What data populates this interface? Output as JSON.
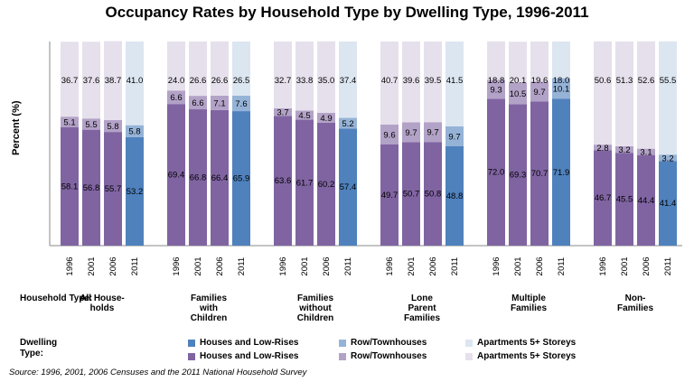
{
  "chart_data": {
    "type": "bar",
    "stacked": true,
    "title": "Occupancy Rates by Household Type by Dwelling Type, 1996-2011",
    "ylabel": "Percent (%)",
    "ylim": [
      0,
      100
    ],
    "grid": false,
    "years": [
      "1996",
      "2001",
      "2006",
      "2011"
    ],
    "row_labels": {
      "household": "Household Type:",
      "dwelling": "Dwelling Type:"
    },
    "groups": [
      {
        "name": "All House-holds",
        "display": [
          "All House-",
          "holds"
        ],
        "houses": [
          58.1,
          56.8,
          55.7,
          53.2
        ],
        "row": [
          5.1,
          5.5,
          5.8,
          5.8
        ],
        "apts": [
          36.7,
          37.6,
          38.7,
          41.0
        ]
      },
      {
        "name": "Families with Children",
        "display": [
          "Families",
          "with",
          "Children"
        ],
        "houses": [
          69.4,
          66.8,
          66.4,
          65.9
        ],
        "row": [
          6.6,
          6.6,
          7.1,
          7.6
        ],
        "apts": [
          24.0,
          26.6,
          26.6,
          26.5
        ]
      },
      {
        "name": "Families without Children",
        "display": [
          "Families",
          "without",
          "Children"
        ],
        "houses": [
          63.6,
          61.7,
          60.2,
          57.4
        ],
        "row": [
          3.7,
          4.5,
          4.9,
          5.2
        ],
        "apts": [
          32.7,
          33.8,
          35.0,
          37.4
        ]
      },
      {
        "name": "Lone Parent Families",
        "display": [
          "Lone",
          "Parent",
          "Families"
        ],
        "houses": [
          49.7,
          50.7,
          50.8,
          48.8
        ],
        "row": [
          9.6,
          9.7,
          9.7,
          9.7
        ],
        "apts": [
          40.7,
          39.6,
          39.5,
          41.5
        ]
      },
      {
        "name": "Multiple Families",
        "display": [
          "Multiple",
          "Families"
        ],
        "houses": [
          72.0,
          69.3,
          70.7,
          71.9
        ],
        "row": [
          9.3,
          10.5,
          9.7,
          10.1
        ],
        "apts": [
          18.8,
          20.1,
          19.6,
          18.0
        ]
      },
      {
        "name": "Non-Families",
        "display": [
          "Non-",
          "Families"
        ],
        "houses": [
          46.7,
          45.5,
          44.4,
          41.4
        ],
        "row": [
          2.8,
          3.2,
          3.1,
          3.2
        ],
        "apts": [
          50.6,
          51.3,
          52.6,
          55.5
        ]
      }
    ],
    "legend": [
      {
        "label": "Houses and Low-Rises",
        "color": "#4f81bd"
      },
      {
        "label": "Row/Townhouses",
        "color": "#95b3d7"
      },
      {
        "label": "Apartments 5+ Storeys",
        "color": "#dce6f1"
      },
      {
        "label": "Houses and Low-Rises",
        "color": "#8064a2"
      },
      {
        "label": "Row/Townhouses",
        "color": "#b3a2c7"
      },
      {
        "label": "Apartments 5+ Storeys",
        "color": "#e6e0ec"
      }
    ],
    "colors": {
      "purple": {
        "houses": "#8064a2",
        "row": "#b3a2c7",
        "apts": "#e6e0ec"
      },
      "blue": {
        "houses": "#4f81bd",
        "row": "#95b3d7",
        "apts": "#dce6f1"
      }
    }
  },
  "source": "Source:  1996, 2001, 2006 Censuses and the 2011 National Household Survey"
}
